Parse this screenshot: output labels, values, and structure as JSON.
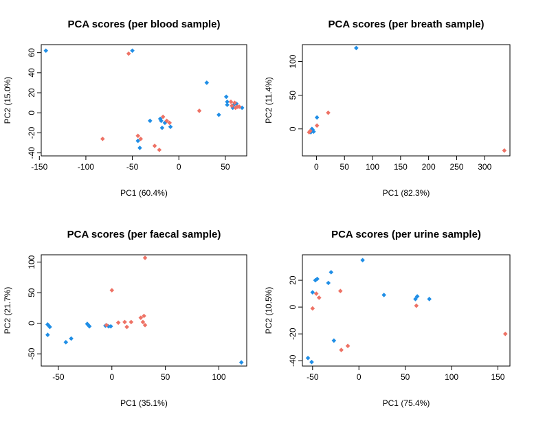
{
  "colors": {
    "group_a": "#1f8ee6",
    "group_b": "#ee7265"
  },
  "chart_data": [
    {
      "type": "scatter",
      "title": "PCA scores (per blood sample)",
      "xlabel": "PC1 (60.4%)",
      "ylabel": "PC2 (15.0%)",
      "xlim": [
        -148,
        73
      ],
      "ylim": [
        -43,
        68
      ],
      "xticks": [
        -150,
        -100,
        -50,
        0,
        50
      ],
      "yticks": [
        -40,
        -20,
        0,
        20,
        40,
        60
      ],
      "grid": false,
      "series": [
        {
          "color": "#1f8ee6",
          "points": [
            [
              -143,
              62
            ],
            [
              -50,
              62
            ],
            [
              30,
              30
            ],
            [
              51,
              16
            ],
            [
              52,
              11
            ],
            [
              52,
              8
            ],
            [
              59,
              8
            ],
            [
              62,
              9
            ],
            [
              68,
              5
            ],
            [
              58,
              5
            ],
            [
              43,
              -2
            ],
            [
              -31,
              -8
            ],
            [
              -20,
              -6
            ],
            [
              -19,
              -8
            ],
            [
              -15,
              -10
            ],
            [
              -18,
              -15
            ],
            [
              -9,
              -14
            ],
            [
              -44,
              -28
            ],
            [
              -42,
              -35
            ]
          ]
        },
        {
          "color": "#ee7265",
          "points": [
            [
              -54,
              59
            ],
            [
              -82,
              -26
            ],
            [
              -44,
              -23
            ],
            [
              -41,
              -26
            ],
            [
              -26,
              -33
            ],
            [
              -21,
              -37
            ],
            [
              -17,
              -4
            ],
            [
              -13,
              -8
            ],
            [
              -10,
              -10
            ],
            [
              22,
              2
            ],
            [
              56,
              11
            ],
            [
              57,
              7
            ],
            [
              60,
              10
            ],
            [
              61,
              5
            ],
            [
              63,
              6
            ],
            [
              65,
              6
            ]
          ]
        }
      ]
    },
    {
      "type": "scatter",
      "title": "PCA scores (per breath sample)",
      "xlabel": "PC1 (82.3%)",
      "ylabel": "PC2 (11.4%)",
      "xlim": [
        -25,
        345
      ],
      "ylim": [
        -40,
        125
      ],
      "xticks": [
        0,
        50,
        100,
        150,
        200,
        250,
        300
      ],
      "yticks": [
        0,
        50,
        100
      ],
      "grid": false,
      "series": [
        {
          "color": "#1f8ee6",
          "points": [
            [
              71,
              120
            ],
            [
              1,
              17
            ],
            [
              -7,
              -1
            ],
            [
              -9,
              -3
            ],
            [
              -10,
              -5
            ],
            [
              -5,
              -4
            ],
            [
              -8,
              0
            ]
          ]
        },
        {
          "color": "#ee7265",
          "points": [
            [
              21,
              24
            ],
            [
              1,
              5
            ],
            [
              -13,
              -5
            ],
            [
              -11,
              -3
            ],
            [
              335,
              -32
            ]
          ]
        }
      ]
    },
    {
      "type": "scatter",
      "title": "PCA scores (per faecal sample)",
      "xlabel": "PC1 (35.1%)",
      "ylabel": "PC2 (21.7%)",
      "xlim": [
        -66,
        126
      ],
      "ylim": [
        -70,
        112
      ],
      "xticks": [
        -50,
        0,
        50,
        100
      ],
      "yticks": [
        -50,
        0,
        50,
        100
      ],
      "grid": false,
      "series": [
        {
          "color": "#1f8ee6",
          "points": [
            [
              -60,
              -2
            ],
            [
              -59,
              -4
            ],
            [
              -58,
              -6
            ],
            [
              -60,
              -19
            ],
            [
              -43,
              -31
            ],
            [
              -38,
              -25
            ],
            [
              -23,
              -1
            ],
            [
              -22,
              -3
            ],
            [
              -21,
              -5
            ],
            [
              -6,
              -4
            ],
            [
              -3,
              -5
            ],
            [
              -1,
              -5
            ],
            [
              121,
              -64
            ]
          ]
        },
        {
          "color": "#ee7265",
          "points": [
            [
              -5,
              -3
            ],
            [
              0,
              54
            ],
            [
              6,
              1
            ],
            [
              12,
              2
            ],
            [
              14,
              -6
            ],
            [
              18,
              2
            ],
            [
              27,
              9
            ],
            [
              29,
              2
            ],
            [
              30,
              12
            ],
            [
              31,
              107
            ],
            [
              31,
              -3
            ]
          ]
        }
      ]
    },
    {
      "type": "scatter",
      "title": "PCA scores (per urine sample)",
      "xlabel": "PC1 (75.4%)",
      "ylabel": "PC2 (10.5%)",
      "xlim": [
        -61,
        163
      ],
      "ylim": [
        -44,
        39
      ],
      "xticks": [
        -50,
        0,
        50,
        100,
        150
      ],
      "yticks": [
        -40,
        -20,
        0,
        20
      ],
      "grid": false,
      "series": [
        {
          "color": "#1f8ee6",
          "points": [
            [
              4,
              35
            ],
            [
              -30,
              26
            ],
            [
              -47,
              20
            ],
            [
              -45,
              21
            ],
            [
              -33,
              18
            ],
            [
              -50,
              11
            ],
            [
              27,
              9
            ],
            [
              63,
              8
            ],
            [
              61,
              6
            ],
            [
              76,
              6
            ],
            [
              -27,
              -25
            ],
            [
              -55,
              -38
            ],
            [
              -51,
              -41
            ]
          ]
        },
        {
          "color": "#ee7265",
          "points": [
            [
              -46,
              10
            ],
            [
              -43,
              7
            ],
            [
              -20,
              12
            ],
            [
              -50,
              -1
            ],
            [
              62,
              1
            ],
            [
              -12,
              -29
            ],
            [
              -19,
              -32
            ],
            [
              158,
              -20
            ]
          ]
        }
      ]
    }
  ]
}
